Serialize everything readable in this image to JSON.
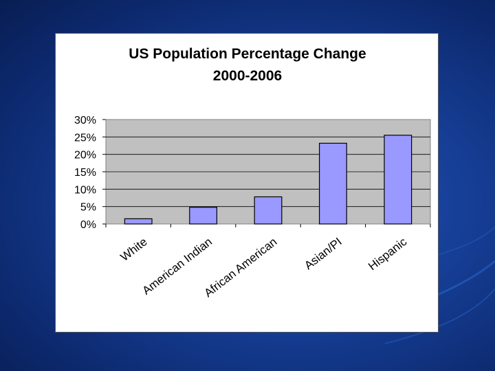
{
  "slide": {
    "background_color": "#163f97",
    "accent_color": "#2a66c8"
  },
  "chart_data": {
    "type": "bar",
    "title": "US Population Percentage Change",
    "subtitle": "2000-2006",
    "categories": [
      "White",
      "American Indian",
      "African American",
      "Asian/PI",
      "Hispanic"
    ],
    "values": [
      1.5,
      4.8,
      7.8,
      23.2,
      25.5
    ],
    "value_format": "percent",
    "ylim": [
      0,
      30
    ],
    "yticks": [
      0,
      5,
      10,
      15,
      20,
      25,
      30
    ],
    "ytick_labels": [
      "0%",
      "5%",
      "10%",
      "15%",
      "20%",
      "25%",
      "30%"
    ],
    "xlabel": "",
    "ylabel": "",
    "grid": true,
    "legend": "none",
    "bar_color": "#9999ff",
    "plot_background": "#c0c0c0"
  }
}
